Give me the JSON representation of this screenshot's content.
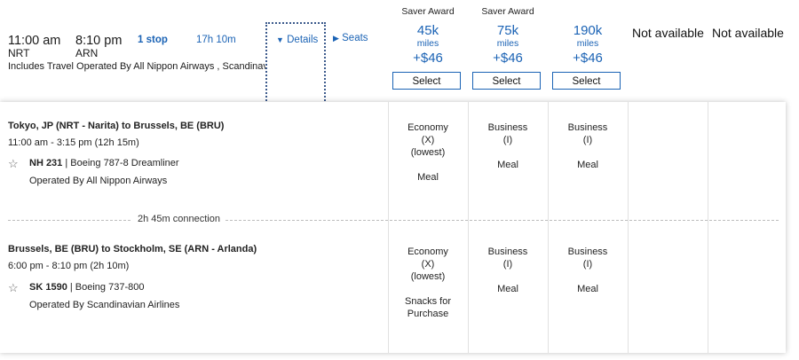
{
  "summary": {
    "depart_time": "11:00 am",
    "arrive_time": "8:10 pm",
    "depart_code": "NRT",
    "arrive_code": "ARN",
    "stops": "1 stop",
    "duration": "17h 10m",
    "details_label": "Details",
    "seats_label": "Seats",
    "operated_note": "Includes Travel Operated By All Nippon Airways , Scandinavia"
  },
  "fares": [
    {
      "label": "Saver Award",
      "miles": "45k",
      "unit": "miles",
      "fee": "+$46",
      "button": "Select"
    },
    {
      "label": "Saver Award",
      "miles": "75k",
      "unit": "miles",
      "fee": "+$46",
      "button": "Select"
    },
    {
      "label": "",
      "miles": "190k",
      "unit": "miles",
      "fee": "+$46",
      "button": "Select"
    }
  ],
  "not_available": [
    "Not available",
    "Not available"
  ],
  "segments": [
    {
      "route": "Tokyo, JP (NRT - Narita) to Brussels, BE (BRU)",
      "times": "11:00 am - 3:15 pm (12h 15m)",
      "flight": "NH 231",
      "aircraft": " | Boeing 787-8 Dreamliner",
      "operator": "Operated By All Nippon Airways",
      "cabins": [
        {
          "name": "Economy",
          "code": "(X)",
          "note": "(lowest)",
          "meal": "Meal"
        },
        {
          "name": "Business",
          "code": "(I)",
          "note": "",
          "meal": "Meal"
        },
        {
          "name": "Business",
          "code": "(I)",
          "note": "",
          "meal": "Meal"
        }
      ]
    },
    {
      "route": "Brussels, BE (BRU) to Stockholm, SE (ARN - Arlanda)",
      "times": "6:00 pm - 8:10 pm (2h 10m)",
      "flight": "SK 1590",
      "aircraft": " | Boeing 737-800",
      "operator": "Operated By Scandinavian Airlines",
      "cabins": [
        {
          "name": "Economy",
          "code": "(X)",
          "note": "(lowest)",
          "meal": "Snacks for Purchase"
        },
        {
          "name": "Business",
          "code": "(I)",
          "note": "",
          "meal": "Meal"
        },
        {
          "name": "Business",
          "code": "(I)",
          "note": "",
          "meal": "Meal"
        }
      ]
    }
  ],
  "connection": "2h 45m connection",
  "colors": {
    "accent": "#1b63b5",
    "divider": "#e1e1e1"
  }
}
